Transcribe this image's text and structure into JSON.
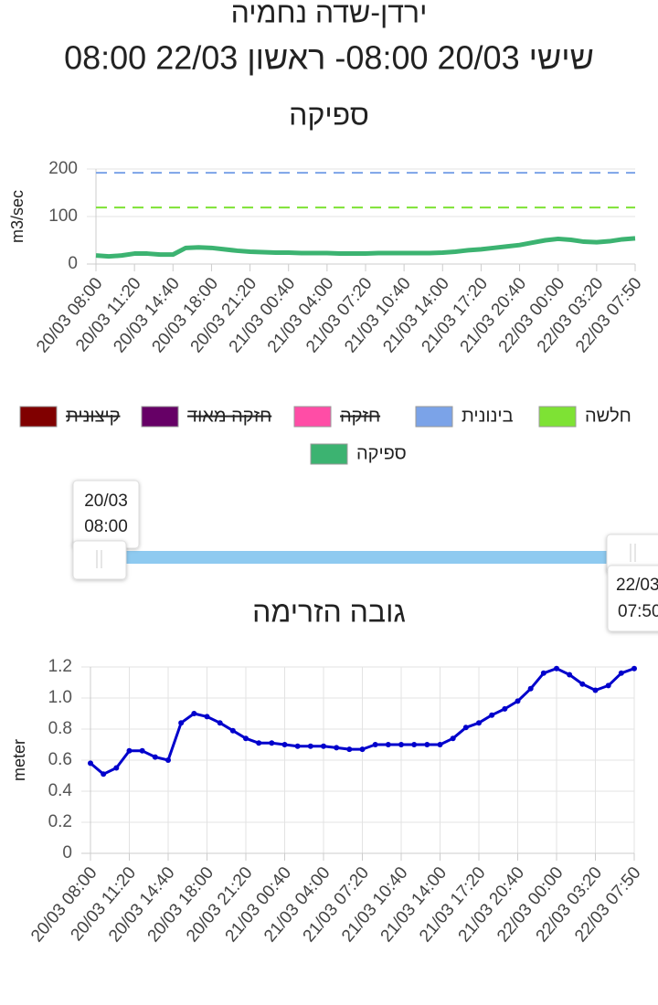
{
  "header": {
    "title": "ירדן-שדה נחמיה",
    "subtitle": "שישי 20/03 08:00- ראשון 22/03 08:00"
  },
  "chart_data": [
    {
      "type": "line",
      "title": "ספיקה",
      "y_label": "m3/sec",
      "categories": [
        "20/03 08:00",
        null,
        null,
        "20/03 11:20",
        null,
        null,
        "20/03 14:40",
        null,
        null,
        "20/03 18:00",
        null,
        null,
        "20/03 21:20",
        null,
        null,
        "21/03 00:40",
        null,
        null,
        "21/03 04:00",
        null,
        null,
        "21/03 07:20",
        null,
        null,
        "21/03 10:40",
        null,
        null,
        "21/03 14:00",
        null,
        null,
        "21/03 17:20",
        null,
        null,
        "21/03 20:40",
        null,
        null,
        "22/03 00:00",
        null,
        null,
        "22/03 03:20",
        null,
        null,
        "22/03 07:50"
      ],
      "ylim": [
        0,
        200
      ],
      "yticks": [
        0,
        100,
        200
      ],
      "grid": true,
      "xgrid": false,
      "markers": false,
      "series": [
        {
          "name": "קיצונית",
          "color": "#800000",
          "hidden": true
        },
        {
          "name": "חזקה מאוד",
          "color": "#660066",
          "hidden": true
        },
        {
          "name": "חזקה",
          "color": "#ff4da6",
          "hidden": true
        },
        {
          "name": "בינונית",
          "color": "#7ba3e8",
          "value": 192
        },
        {
          "name": "חלשה",
          "color": "#7ee234",
          "value": 119
        },
        {
          "name": "ספיקה",
          "color": "#3cb371",
          "values": [
            18,
            16,
            18,
            22,
            22,
            20,
            20,
            34,
            35,
            34,
            31,
            28,
            26,
            25,
            24,
            24,
            23,
            23,
            23,
            22,
            22,
            22,
            23,
            23,
            23,
            23,
            23,
            24,
            26,
            29,
            31,
            34,
            37,
            40,
            45,
            50,
            53,
            51,
            47,
            46,
            48,
            52,
            54
          ]
        }
      ]
    },
    {
      "type": "line",
      "title": "גובה הזרימה",
      "y_label": "meter",
      "categories": [
        "20/03 08:00",
        null,
        null,
        "20/03 11:20",
        null,
        null,
        "20/03 14:40",
        null,
        null,
        "20/03 18:00",
        null,
        null,
        "20/03 21:20",
        null,
        null,
        "21/03 00:40",
        null,
        null,
        "21/03 04:00",
        null,
        null,
        "21/03 07:20",
        null,
        null,
        "21/03 10:40",
        null,
        null,
        "21/03 14:00",
        null,
        null,
        "21/03 17:20",
        null,
        null,
        "21/03 20:40",
        null,
        null,
        "22/03 00:00",
        null,
        null,
        "22/03 03:20",
        null,
        null,
        "22/03 07:50"
      ],
      "ylim": [
        0,
        1.2
      ],
      "yticks": [
        0,
        0.2,
        0.4,
        0.6,
        0.8,
        {
          "value": 1,
          "label": "1.0"
        },
        1.2
      ],
      "grid": true,
      "xgrid": true,
      "markers": true,
      "series": [
        {
          "color": "#0000cc",
          "values": [
            0.58,
            0.51,
            0.55,
            0.66,
            0.66,
            0.62,
            0.6,
            0.84,
            0.9,
            0.88,
            0.84,
            0.79,
            0.74,
            0.71,
            0.71,
            0.7,
            0.69,
            0.69,
            0.69,
            0.68,
            0.67,
            0.67,
            0.7,
            0.7,
            0.7,
            0.7,
            0.7,
            0.7,
            0.74,
            0.81,
            0.84,
            0.89,
            0.93,
            0.98,
            1.06,
            1.16,
            1.19,
            1.15,
            1.09,
            1.05,
            1.08,
            1.16,
            1.19
          ]
        }
      ]
    }
  ],
  "slider": {
    "start": {
      "date": "20/03",
      "time": "08:00"
    },
    "end": {
      "date": "22/03",
      "time": "07:50"
    }
  }
}
